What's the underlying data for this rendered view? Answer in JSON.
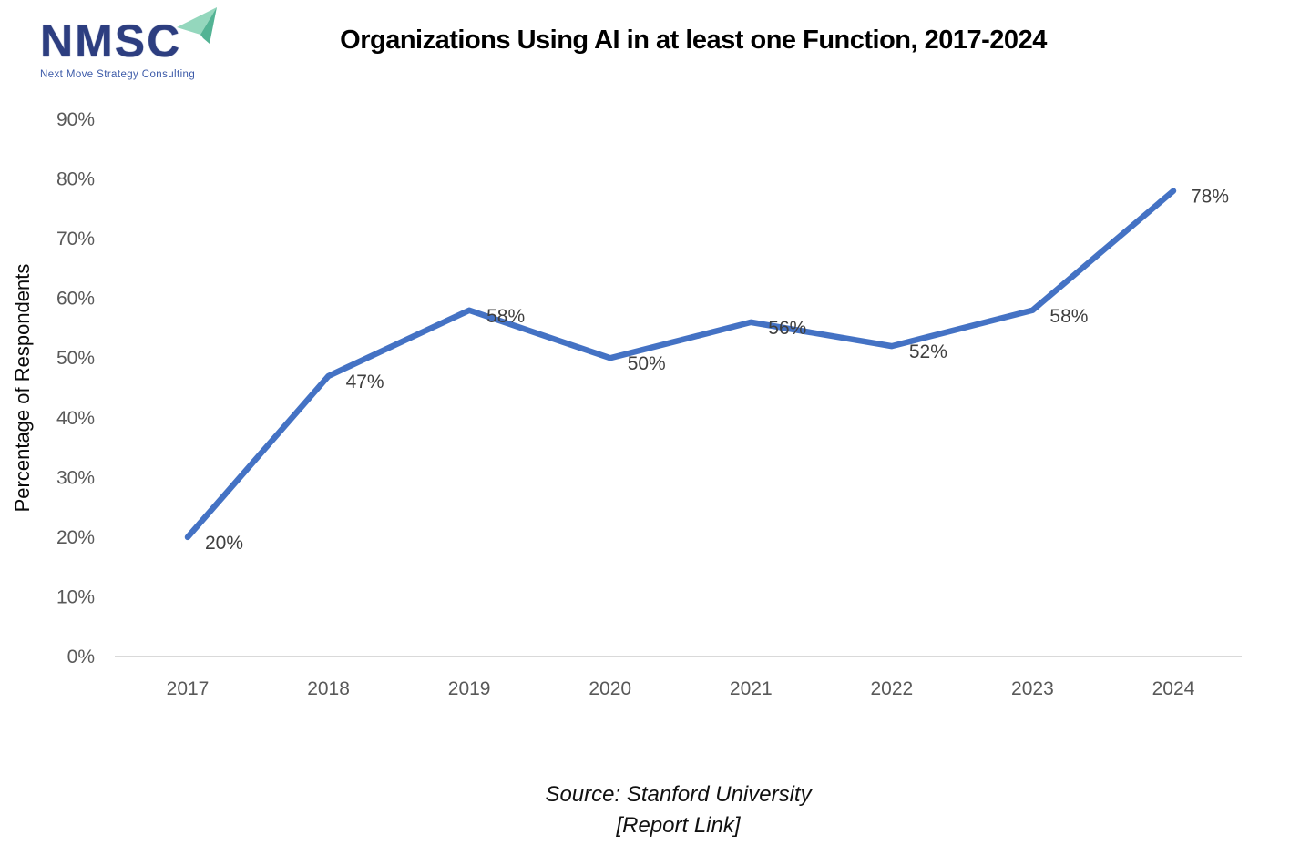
{
  "logo": {
    "name": "NMSC",
    "tagline": "Next Move Strategy Consulting",
    "name_color": "#2d3e80",
    "tagline_color": "#3c5aa8",
    "plane_light_color": "#94d7bd",
    "plane_dark_color": "#53b394"
  },
  "chart_data": {
    "type": "line",
    "title": "Organizations Using AI in at least one Function, 2017-2024",
    "categories": [
      "2017",
      "2018",
      "2019",
      "2020",
      "2021",
      "2022",
      "2023",
      "2024"
    ],
    "values": [
      20,
      47,
      58,
      50,
      56,
      52,
      58,
      78
    ],
    "data_labels": [
      "20%",
      "47%",
      "58%",
      "50%",
      "56%",
      "52%",
      "58%",
      "78%"
    ],
    "ylabel": "Percentage of Respondents",
    "xlabel": "",
    "ytick_values": [
      0,
      10,
      20,
      30,
      40,
      50,
      60,
      70,
      80,
      90
    ],
    "ytick_labels": [
      "0%",
      "10%",
      "20%",
      "30%",
      "40%",
      "50%",
      "60%",
      "70%",
      "80%",
      "90%"
    ],
    "ylim": [
      0,
      90
    ],
    "grid": false,
    "legend": false,
    "line_color": "#4472C4",
    "axis_color": "#d9d9d9",
    "tick_label_color": "#595959",
    "data_label_color": "#3f3f3f",
    "ylabel_color": "#0a0a0a"
  },
  "source": {
    "line1": "Source: Stanford University",
    "line2": "[Report Link]"
  }
}
